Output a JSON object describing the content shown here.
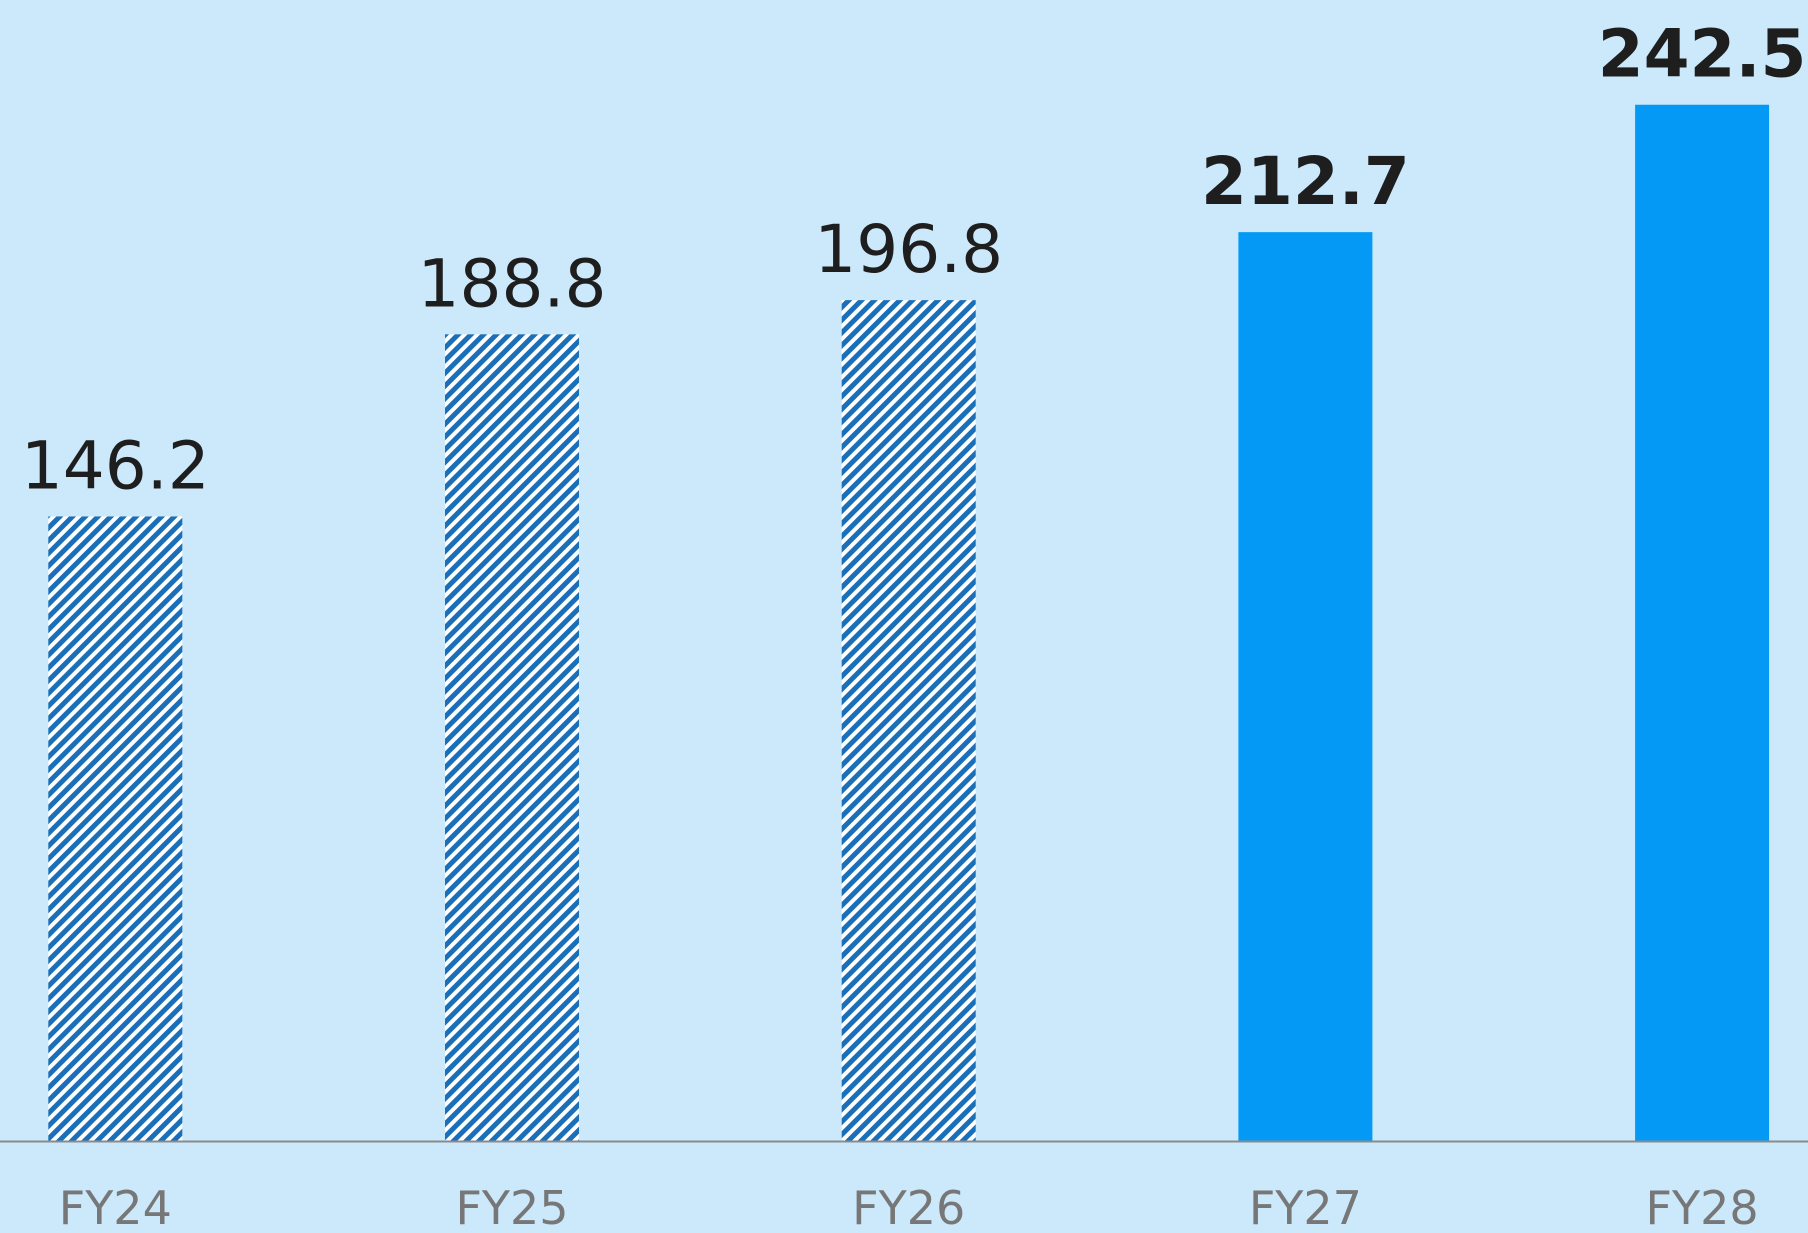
{
  "chart_data": {
    "type": "bar",
    "categories": [
      "FY24",
      "FY25",
      "FY26",
      "FY27",
      "FY28"
    ],
    "values": [
      146.2,
      188.8,
      196.8,
      212.7,
      242.5
    ],
    "colors": [
      "#1b6fb8",
      "#1b6fb8",
      "#1b6fb8",
      "#0399f5",
      "#0399f5"
    ],
    "hatch": [
      true,
      true,
      true,
      false,
      false
    ],
    "bold_labels": [
      false,
      false,
      false,
      true,
      true
    ],
    "ylim": [
      0,
      267
    ]
  }
}
